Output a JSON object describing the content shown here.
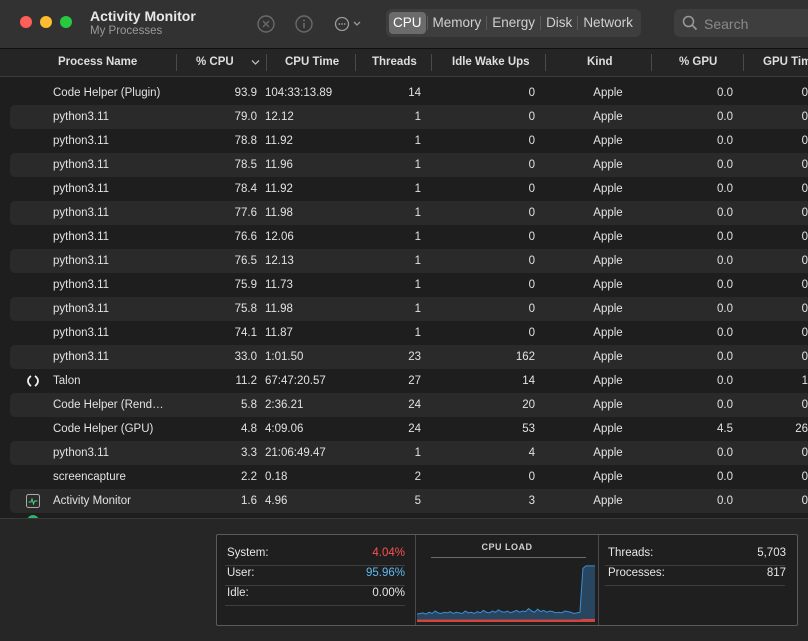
{
  "window": {
    "title": "Activity Monitor",
    "subtitle": "My Processes"
  },
  "toolbar": {
    "tabs": [
      {
        "label": "CPU",
        "selected": true
      },
      {
        "label": "Memory",
        "selected": false
      },
      {
        "label": "Energy",
        "selected": false
      },
      {
        "label": "Disk",
        "selected": false
      },
      {
        "label": "Network",
        "selected": false
      }
    ],
    "search_placeholder": "Search",
    "icons": [
      "stop-process-icon",
      "info-icon",
      "more-actions-icon"
    ]
  },
  "table": {
    "columns": [
      "Process Name",
      "% CPU",
      "CPU Time",
      "Threads",
      "Idle Wake Ups",
      "Kind",
      "% GPU",
      "GPU Tim"
    ],
    "sorted_column": "% CPU",
    "rows": [
      [
        "Code Helper (Plugin)",
        "93.9",
        "104:33:13.89",
        "14",
        "0",
        "Apple",
        "0.0",
        "0"
      ],
      [
        "python3.11",
        "79.0",
        "12.12",
        "1",
        "0",
        "Apple",
        "0.0",
        "0"
      ],
      [
        "python3.11",
        "78.8",
        "11.92",
        "1",
        "0",
        "Apple",
        "0.0",
        "0"
      ],
      [
        "python3.11",
        "78.5",
        "11.96",
        "1",
        "0",
        "Apple",
        "0.0",
        "0"
      ],
      [
        "python3.11",
        "78.4",
        "11.92",
        "1",
        "0",
        "Apple",
        "0.0",
        "0"
      ],
      [
        "python3.11",
        "77.6",
        "11.98",
        "1",
        "0",
        "Apple",
        "0.0",
        "0"
      ],
      [
        "python3.11",
        "76.6",
        "12.06",
        "1",
        "0",
        "Apple",
        "0.0",
        "0"
      ],
      [
        "python3.11",
        "76.5",
        "12.13",
        "1",
        "0",
        "Apple",
        "0.0",
        "0"
      ],
      [
        "python3.11",
        "75.9",
        "11.73",
        "1",
        "0",
        "Apple",
        "0.0",
        "0"
      ],
      [
        "python3.11",
        "75.8",
        "11.98",
        "1",
        "0",
        "Apple",
        "0.0",
        "0"
      ],
      [
        "python3.11",
        "74.1",
        "11.87",
        "1",
        "0",
        "Apple",
        "0.0",
        "0"
      ],
      [
        "python3.11",
        "33.0",
        "1:01.50",
        "23",
        "162",
        "Apple",
        "0.0",
        "0"
      ],
      [
        "Talon",
        "11.2",
        "67:47:20.57",
        "27",
        "14",
        "Apple",
        "0.0",
        "1"
      ],
      [
        "Code Helper (Rend…",
        "5.8",
        "2:36.21",
        "24",
        "20",
        "Apple",
        "0.0",
        "0"
      ],
      [
        "Code Helper (GPU)",
        "4.8",
        "4:09.06",
        "24",
        "53",
        "Apple",
        "4.5",
        "26"
      ],
      [
        "python3.11",
        "3.3",
        "21:06:49.47",
        "1",
        "4",
        "Apple",
        "0.0",
        "0"
      ],
      [
        "screencapture",
        "2.2",
        "0.18",
        "2",
        "0",
        "Apple",
        "0.0",
        "0"
      ],
      [
        "Activity Monitor",
        "1.6",
        "4.96",
        "5",
        "3",
        "Apple",
        "0.0",
        "0"
      ]
    ],
    "row_icons": {
      "12": "talon-icon",
      "17": "activity-monitor-icon"
    }
  },
  "summary": {
    "system_label": "System:",
    "system_value": "4.04%",
    "user_label": "User:",
    "user_value": "95.96%",
    "idle_label": "Idle:",
    "idle_value": "0.00%",
    "threads_label": "Threads:",
    "threads_value": "5,703",
    "processes_label": "Processes:",
    "processes_value": "817",
    "chart_title": "CPU LOAD"
  },
  "chart_data": {
    "type": "area",
    "title": "CPU LOAD",
    "series": [
      {
        "color": "#3a8fd6",
        "values": [
          13,
          14,
          15,
          13,
          16,
          14,
          18,
          15,
          14,
          16,
          15,
          17,
          14,
          16,
          15,
          14,
          18,
          15,
          16,
          14,
          17,
          15,
          19,
          16,
          15,
          18,
          16,
          20,
          17,
          16,
          18,
          15,
          17,
          19,
          16,
          18,
          17,
          22,
          18,
          16,
          21,
          17,
          19,
          16,
          18,
          17,
          15,
          16,
          15,
          18,
          17,
          16,
          14,
          15,
          16,
          88,
          92,
          92,
          92,
          92
        ]
      },
      {
        "color": "#e0443a",
        "values": [
          3,
          3,
          3,
          3,
          3,
          3,
          3,
          3,
          3,
          3,
          3,
          3,
          3,
          3,
          3,
          3,
          3,
          3,
          3,
          3,
          3,
          3,
          3,
          3,
          3,
          3,
          3,
          3,
          3,
          3,
          3,
          3,
          3,
          3,
          3,
          3,
          3,
          3,
          3,
          3,
          3,
          3,
          3,
          3,
          3,
          3,
          3,
          3,
          3,
          3,
          3,
          3,
          3,
          3,
          3,
          4,
          4,
          4,
          4,
          4
        ]
      }
    ],
    "ylim": [
      0,
      100
    ]
  },
  "colors": {
    "system": "#ff5050",
    "user": "#5fb8f0"
  }
}
